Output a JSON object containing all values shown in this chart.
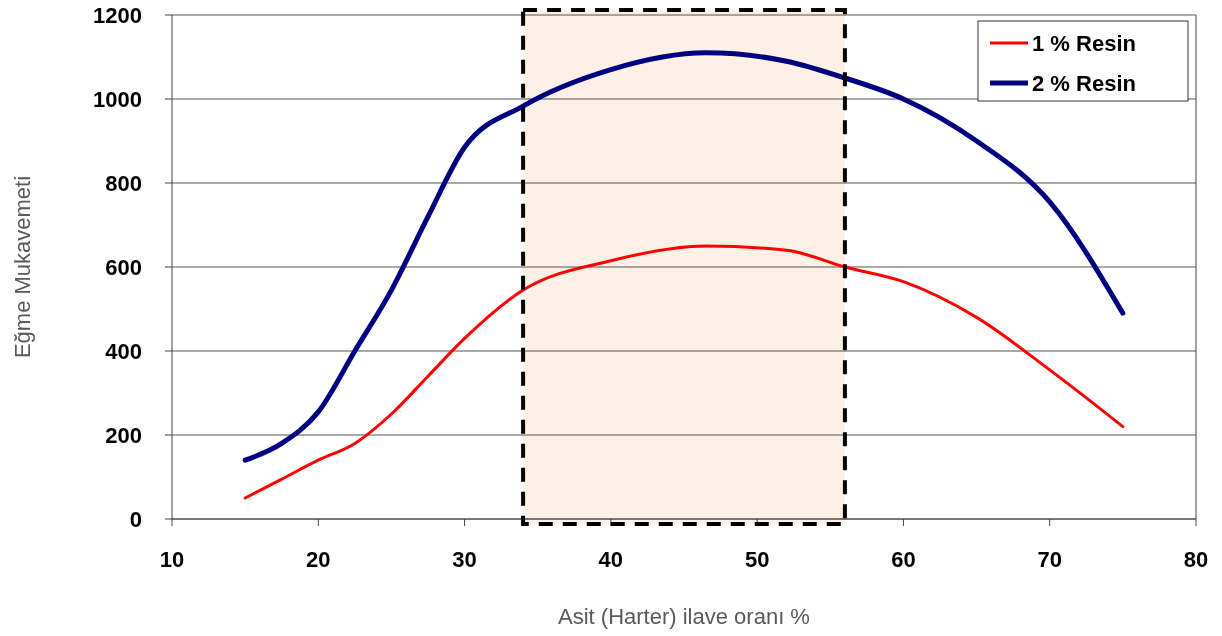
{
  "chart_data": {
    "type": "line",
    "xlabel": "Asit (Harter) ilave oranı %",
    "ylabel": "Eğme Mukavemeti",
    "xlim": [
      10,
      80
    ],
    "xticks": [
      10,
      20,
      30,
      40,
      50,
      60,
      70,
      80
    ],
    "ylim": [
      0,
      1200
    ],
    "yticks": [
      0,
      200,
      400,
      600,
      800,
      1000,
      1200
    ],
    "grid": "y",
    "legend": "top right",
    "marker": "none",
    "line_style": "solid",
    "bands": [
      {
        "axis": "x",
        "from": 34,
        "to": 56,
        "color": "#fdf1e7"
      }
    ],
    "series": [
      {
        "name": "1 % Resin",
        "color": "#ff0000",
        "x": [
          15,
          17.5,
          20,
          22.5,
          25,
          27.5,
          30,
          34,
          40,
          46.5,
          52,
          56,
          60,
          65,
          70,
          75
        ],
        "values": [
          50,
          95,
          140,
          180,
          250,
          340,
          430,
          545,
          615,
          650,
          640,
          600,
          565,
          480,
          355,
          220
        ]
      },
      {
        "name": "2 % Resin",
        "color": "#000080",
        "x": [
          15,
          17.5,
          20,
          22.5,
          25,
          27.5,
          30,
          34,
          40,
          46.5,
          52,
          56,
          60,
          65,
          70,
          75
        ],
        "values": [
          140,
          180,
          255,
          400,
          545,
          720,
          885,
          983,
          1070,
          1110,
          1090,
          1050,
          1000,
          900,
          755,
          490
        ]
      }
    ]
  }
}
